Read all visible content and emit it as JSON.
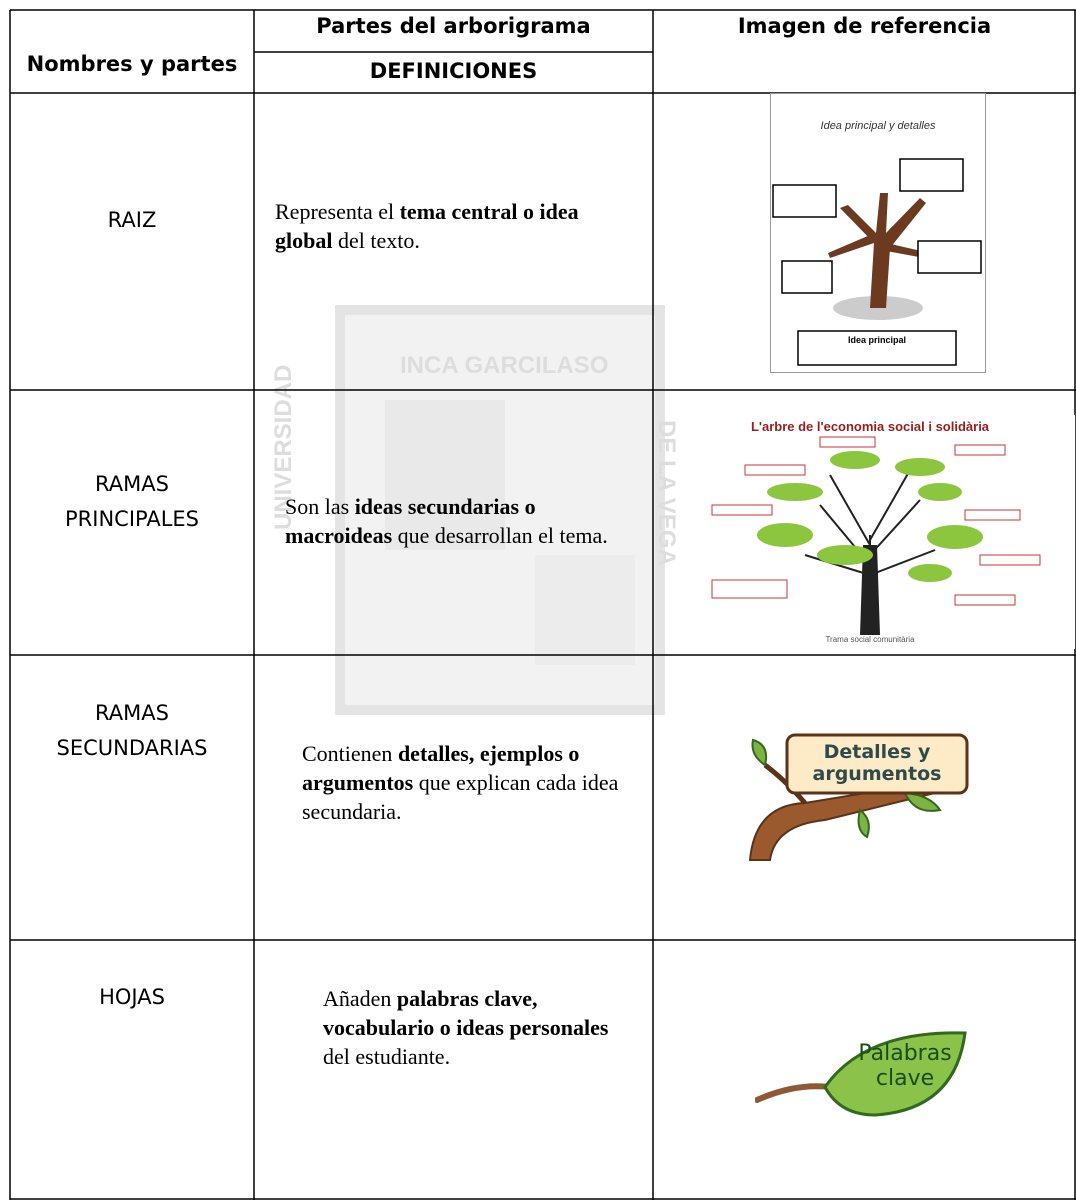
{
  "header": {
    "col1": "Nombres y partes",
    "col2_top": "Partes del arborigrama",
    "col2_bottom": "DEFINICIONES",
    "col3": "Imagen de referencia"
  },
  "rows": [
    {
      "name": "RAIZ",
      "definition": [
        {
          "text": "Representa el "
        },
        {
          "bold": "tema central o idea global"
        },
        {
          "text": " del texto."
        }
      ],
      "image": {
        "title": "Idea principal y detalles",
        "label": "Idea principal"
      }
    },
    {
      "name": "RAMAS PRINCIPALES",
      "definition": [
        {
          "text": "Son las "
        },
        {
          "bold": "ideas secundarias o macroideas"
        },
        {
          "text": " que desarrollan el tema."
        }
      ],
      "image": {
        "title": "L'arbre de l'economia social i solidària",
        "label": "Trama social comunitària"
      }
    },
    {
      "name": "RAMAS SECUNDARIAS",
      "definition": [
        {
          "text": "Contienen "
        },
        {
          "bold": "detalles, ejemplos o argumentos"
        },
        {
          "text": " que explican cada idea secundaria."
        }
      ],
      "image": {
        "label": "Detalles y argumentos"
      }
    },
    {
      "name": "HOJAS",
      "definition": [
        {
          "text": "Añaden "
        },
        {
          "bold": "palabras clave, vocabulario o ideas personales"
        },
        {
          "text": " del estudiante."
        }
      ],
      "image": {
        "label": "Palabras clave"
      }
    }
  ],
  "watermark": [
    "INCA GARCILASO",
    "UNIVERSIDAD",
    "DE LA VEGA"
  ]
}
